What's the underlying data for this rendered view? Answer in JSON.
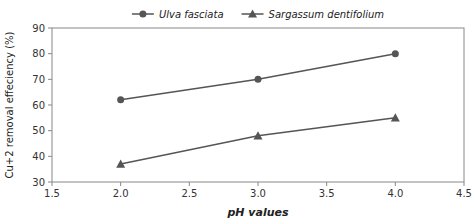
{
  "chart_data": {
    "type": "line",
    "x": [
      2,
      3,
      4
    ],
    "series": [
      {
        "name": "Ulva fasciata",
        "color": "#555555",
        "marker": "circle",
        "line_style": "solid",
        "values": [
          62,
          70,
          80
        ]
      },
      {
        "name": "Sargassum dentifolium",
        "color": "#555555",
        "marker": "triangle",
        "line_style": "solid",
        "values": [
          37,
          48,
          55
        ]
      }
    ],
    "x_label": "pH values",
    "y_label": "Cu+2 removal effeciency (%)",
    "xlim": [
      1.5,
      4.5
    ],
    "ylim": [
      30,
      90
    ],
    "xticks": [
      1.5,
      {
        "value": 2,
        "label": "2.0"
      },
      2.5,
      {
        "value": 3,
        "label": "3.0"
      },
      3.5,
      {
        "value": 4,
        "label": "4.0"
      },
      4.5
    ],
    "yticks": [
      30,
      40,
      50,
      60,
      70,
      80,
      90
    ],
    "grid": false,
    "legend": "top"
  }
}
